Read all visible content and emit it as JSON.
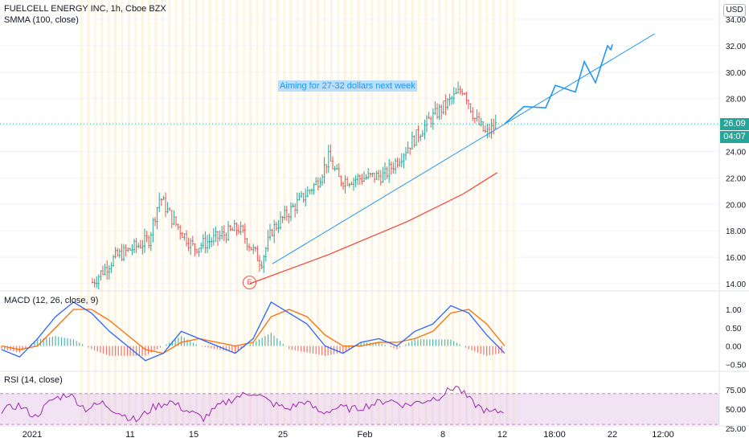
{
  "header": {
    "symbol_line": "FUELCELL ENERGY INC, 1h, Cboe BZX",
    "smma_label": "SMMA (100, close)",
    "currency": "USD"
  },
  "price_axis": {
    "ticks": [
      "34.00",
      "32.00",
      "30.00",
      "28.00",
      "26.00",
      "24.00",
      "22.00",
      "20.00",
      "18.00",
      "16.00",
      "14.00"
    ]
  },
  "last_price": {
    "value": "26.09",
    "countdown": "04:07"
  },
  "annotation": "Aiming for 27-32 dollars next week",
  "event_marker": "E",
  "macd": {
    "label": "MACD (12, 26, close, 9)",
    "ticks": [
      "1.00",
      "0.50",
      "0.00",
      "−0.50"
    ]
  },
  "rsi": {
    "label": "RSI (14, close)",
    "ticks": [
      "75.00",
      "50.00",
      "25.00"
    ]
  },
  "time_axis": {
    "ticks": [
      "2021",
      "11",
      "15",
      "25",
      "Feb",
      "8",
      "12",
      "18:00",
      "22",
      "12:00"
    ]
  },
  "colors": {
    "up": "#26a69a",
    "down": "#ef5350",
    "smma": "#f44336",
    "trend": "#2196f3",
    "macd": "#2962ff",
    "signal": "#ff6d00",
    "rsi": "#9c27b0",
    "rsi_band": "#e1bee7"
  },
  "chart_data": {
    "type": "candlestick",
    "price_ylim": [
      13.5,
      35
    ],
    "approx_close_path": [
      {
        "x": "2021-01-06",
        "close": 14.1
      },
      {
        "x": "2021-01-08",
        "close": 16.0
      },
      {
        "x": "2021-01-11",
        "close": 17.3
      },
      {
        "x": "2021-01-12",
        "close": 20.6
      },
      {
        "x": "2021-01-13",
        "close": 19.0
      },
      {
        "x": "2021-01-15",
        "close": 16.7
      },
      {
        "x": "2021-01-19",
        "close": 18.2
      },
      {
        "x": "2021-01-21",
        "close": 15.6
      },
      {
        "x": "2021-01-22",
        "close": 18.1
      },
      {
        "x": "2021-01-26",
        "close": 21.7
      },
      {
        "x": "2021-01-27",
        "close": 23.5
      },
      {
        "x": "2021-01-28",
        "close": 21.8
      },
      {
        "x": "2021-02-01",
        "close": 22.2
      },
      {
        "x": "2021-02-03",
        "close": 24.3
      },
      {
        "x": "2021-02-05",
        "close": 26.4
      },
      {
        "x": "2021-02-08",
        "close": 28.8
      },
      {
        "x": "2021-02-09",
        "close": 26.5
      },
      {
        "x": "2021-02-10",
        "close": 25.3
      },
      {
        "x": "2021-02-11",
        "close": 26.09
      }
    ],
    "smma_100": [
      {
        "x": "2021-01-20",
        "y": 14.0
      },
      {
        "x": "2021-01-27",
        "y": 16.2
      },
      {
        "x": "2021-02-03",
        "y": 18.7
      },
      {
        "x": "2021-02-08",
        "y": 20.8
      },
      {
        "x": "2021-02-11",
        "y": 22.4
      }
    ],
    "trendline": [
      {
        "x": "2021-01-22",
        "y": 15.5
      },
      {
        "x": "2021-02-25",
        "y": 32.9
      }
    ],
    "projection": [
      26.09,
      27.4,
      27.3,
      29.0,
      28.5,
      30.8,
      29.2,
      32.0,
      31.7,
      32.1
    ],
    "macd": {
      "ylim": [
        -0.7,
        1.4
      ],
      "macd_line": [
        -0.1,
        -0.3,
        0.2,
        0.8,
        1.2,
        0.9,
        0.4,
        0.0,
        -0.4,
        -0.2,
        0.4,
        0.2,
        0.0,
        -0.2,
        0.2,
        1.2,
        0.9,
        0.6,
        0.0,
        -0.2,
        0.1,
        0.2,
        0.0,
        0.4,
        0.6,
        1.1,
        0.9,
        0.3,
        -0.2
      ],
      "signal_line": [
        0.0,
        -0.1,
        0.0,
        0.5,
        1.0,
        1.0,
        0.7,
        0.3,
        -0.1,
        -0.2,
        0.1,
        0.2,
        0.1,
        0.0,
        0.1,
        0.8,
        1.0,
        0.8,
        0.3,
        0.0,
        0.0,
        0.1,
        0.1,
        0.2,
        0.4,
        0.9,
        1.0,
        0.6,
        0.0
      ]
    },
    "rsi": {
      "ylim": [
        20,
        85
      ],
      "band": [
        30,
        70
      ],
      "values": [
        48,
        55,
        40,
        62,
        70,
        50,
        58,
        45,
        35,
        52,
        60,
        48,
        38,
        55,
        66,
        72,
        58,
        50,
        60,
        45,
        52,
        50,
        56,
        62,
        55,
        60,
        66,
        80,
        58,
        45,
        48
      ]
    }
  }
}
